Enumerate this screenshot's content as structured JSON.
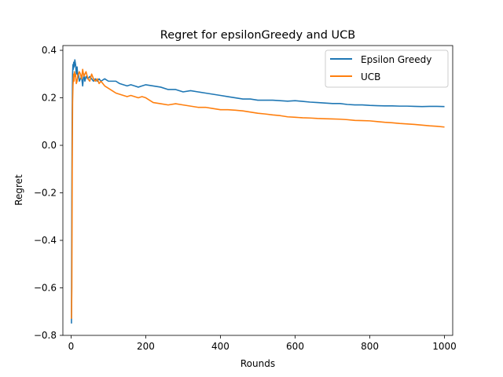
{
  "chart_data": {
    "type": "line",
    "title": "Regret for epsilonGreedy and UCB",
    "xlabel": "Rounds",
    "ylabel": "Regret",
    "xlim": [
      -22,
      1022
    ],
    "ylim": [
      -0.8,
      0.42
    ],
    "xticks": [
      0,
      200,
      400,
      600,
      800,
      1000
    ],
    "xtick_labels": [
      "0",
      "200",
      "400",
      "600",
      "800",
      "1000"
    ],
    "yticks": [
      -0.8,
      -0.6,
      -0.4,
      -0.2,
      0.0,
      0.2,
      0.4
    ],
    "ytick_labels": [
      "−0.8",
      "−0.6",
      "−0.4",
      "−0.2",
      "0.0",
      "0.2",
      "0.4"
    ],
    "grid": false,
    "legend_position": "top-right",
    "series": [
      {
        "name": "Epsilon Greedy",
        "color": "#1f77b4",
        "x": [
          1,
          2,
          3,
          4,
          5,
          6,
          7,
          8,
          9,
          10,
          12,
          14,
          16,
          18,
          20,
          22,
          25,
          28,
          31,
          34,
          37,
          40,
          45,
          50,
          55,
          60,
          65,
          70,
          75,
          80,
          90,
          100,
          110,
          120,
          130,
          140,
          150,
          160,
          170,
          180,
          190,
          200,
          220,
          240,
          260,
          280,
          300,
          320,
          340,
          360,
          380,
          400,
          420,
          440,
          460,
          480,
          500,
          520,
          540,
          560,
          580,
          600,
          620,
          640,
          660,
          680,
          700,
          720,
          740,
          760,
          780,
          800,
          820,
          840,
          860,
          880,
          900,
          920,
          940,
          960,
          980,
          1000
        ],
        "y": [
          -0.75,
          -0.22,
          0.15,
          0.3,
          0.34,
          0.32,
          0.35,
          0.33,
          0.34,
          0.36,
          0.34,
          0.3,
          0.33,
          0.29,
          0.3,
          0.27,
          0.28,
          0.29,
          0.25,
          0.3,
          0.27,
          0.29,
          0.28,
          0.29,
          0.28,
          0.27,
          0.28,
          0.27,
          0.28,
          0.27,
          0.28,
          0.27,
          0.27,
          0.27,
          0.26,
          0.255,
          0.25,
          0.255,
          0.25,
          0.245,
          0.25,
          0.255,
          0.25,
          0.245,
          0.235,
          0.235,
          0.225,
          0.23,
          0.225,
          0.22,
          0.215,
          0.21,
          0.205,
          0.2,
          0.195,
          0.195,
          0.19,
          0.19,
          0.19,
          0.188,
          0.186,
          0.188,
          0.185,
          0.182,
          0.18,
          0.178,
          0.176,
          0.176,
          0.172,
          0.17,
          0.17,
          0.168,
          0.167,
          0.166,
          0.166,
          0.165,
          0.165,
          0.164,
          0.163,
          0.164,
          0.164,
          0.163
        ]
      },
      {
        "name": "UCB",
        "color": "#ff7f0e",
        "x": [
          1,
          2,
          3,
          4,
          5,
          6,
          7,
          8,
          9,
          10,
          12,
          14,
          16,
          18,
          20,
          22,
          25,
          28,
          31,
          34,
          37,
          40,
          45,
          50,
          55,
          60,
          65,
          70,
          75,
          80,
          90,
          100,
          110,
          120,
          130,
          140,
          150,
          160,
          170,
          180,
          190,
          200,
          220,
          240,
          260,
          280,
          300,
          320,
          340,
          360,
          380,
          400,
          420,
          440,
          460,
          480,
          500,
          520,
          540,
          560,
          580,
          600,
          620,
          640,
          660,
          680,
          700,
          720,
          740,
          760,
          780,
          800,
          820,
          840,
          860,
          880,
          900,
          920,
          940,
          960,
          980,
          1000
        ],
        "y": [
          -0.73,
          -0.6,
          -0.1,
          0.18,
          0.25,
          0.28,
          0.3,
          0.27,
          0.31,
          0.29,
          0.3,
          0.26,
          0.27,
          0.29,
          0.3,
          0.31,
          0.3,
          0.28,
          0.32,
          0.29,
          0.3,
          0.31,
          0.28,
          0.27,
          0.3,
          0.28,
          0.27,
          0.28,
          0.26,
          0.27,
          0.25,
          0.24,
          0.23,
          0.22,
          0.215,
          0.21,
          0.205,
          0.21,
          0.205,
          0.2,
          0.205,
          0.2,
          0.18,
          0.175,
          0.17,
          0.175,
          0.17,
          0.165,
          0.16,
          0.16,
          0.155,
          0.15,
          0.15,
          0.148,
          0.145,
          0.14,
          0.135,
          0.132,
          0.128,
          0.125,
          0.12,
          0.118,
          0.116,
          0.115,
          0.113,
          0.112,
          0.111,
          0.11,
          0.108,
          0.105,
          0.104,
          0.103,
          0.1,
          0.097,
          0.095,
          0.092,
          0.09,
          0.088,
          0.085,
          0.082,
          0.08,
          0.077
        ]
      }
    ]
  }
}
